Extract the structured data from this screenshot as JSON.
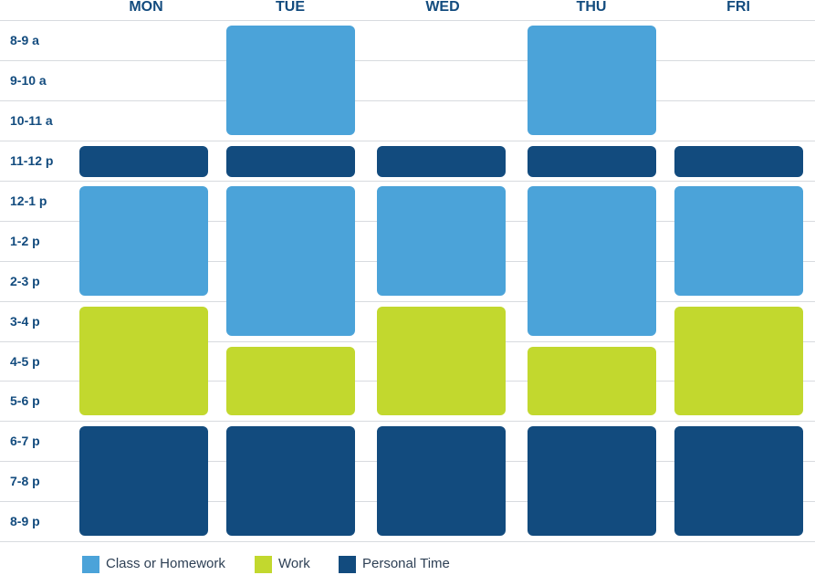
{
  "chart_data": {
    "type": "table",
    "title": "",
    "days": [
      "MON",
      "TUE",
      "WED",
      "THU",
      "FRI"
    ],
    "time_slots": [
      "8-9 a",
      "9-10 a",
      "10-11 a",
      "11-12 p",
      "12-1 p",
      "1-2 p",
      "2-3 p",
      "3-4 p",
      "4-5 p",
      "5-6 p",
      "6-7 p",
      "7-8 p",
      "8-9 p"
    ],
    "categories": [
      {
        "key": "class",
        "name": "Class or Homework",
        "color": "#4ba3d9"
      },
      {
        "key": "work",
        "name": "Work",
        "color": "#c2d82e"
      },
      {
        "key": "personal",
        "name": "Personal Time",
        "color": "#124b7e"
      }
    ],
    "blocks": [
      {
        "day": "TUE",
        "start_slot": "8-9 a",
        "end_slot": "10-11 a",
        "category": "class"
      },
      {
        "day": "THU",
        "start_slot": "8-9 a",
        "end_slot": "10-11 a",
        "category": "class"
      },
      {
        "day": "MON",
        "start_slot": "11-12 p",
        "end_slot": "11-12 p",
        "category": "personal"
      },
      {
        "day": "TUE",
        "start_slot": "11-12 p",
        "end_slot": "11-12 p",
        "category": "personal"
      },
      {
        "day": "WED",
        "start_slot": "11-12 p",
        "end_slot": "11-12 p",
        "category": "personal"
      },
      {
        "day": "THU",
        "start_slot": "11-12 p",
        "end_slot": "11-12 p",
        "category": "personal"
      },
      {
        "day": "FRI",
        "start_slot": "11-12 p",
        "end_slot": "11-12 p",
        "category": "personal"
      },
      {
        "day": "MON",
        "start_slot": "12-1 p",
        "end_slot": "2-3 p",
        "category": "class"
      },
      {
        "day": "TUE",
        "start_slot": "12-1 p",
        "end_slot": "3-4 p",
        "category": "class"
      },
      {
        "day": "WED",
        "start_slot": "12-1 p",
        "end_slot": "2-3 p",
        "category": "class"
      },
      {
        "day": "THU",
        "start_slot": "12-1 p",
        "end_slot": "3-4 p",
        "category": "class"
      },
      {
        "day": "FRI",
        "start_slot": "12-1 p",
        "end_slot": "2-3 p",
        "category": "class"
      },
      {
        "day": "MON",
        "start_slot": "3-4 p",
        "end_slot": "5-6 p",
        "category": "work"
      },
      {
        "day": "TUE",
        "start_slot": "4-5 p",
        "end_slot": "5-6 p",
        "category": "work"
      },
      {
        "day": "WED",
        "start_slot": "3-4 p",
        "end_slot": "5-6 p",
        "category": "work"
      },
      {
        "day": "THU",
        "start_slot": "4-5 p",
        "end_slot": "5-6 p",
        "category": "work"
      },
      {
        "day": "FRI",
        "start_slot": "3-4 p",
        "end_slot": "5-6 p",
        "category": "work"
      },
      {
        "day": "MON",
        "start_slot": "6-7 p",
        "end_slot": "8-9 p",
        "category": "personal"
      },
      {
        "day": "TUE",
        "start_slot": "6-7 p",
        "end_slot": "8-9 p",
        "category": "personal"
      },
      {
        "day": "WED",
        "start_slot": "6-7 p",
        "end_slot": "8-9 p",
        "category": "personal"
      },
      {
        "day": "THU",
        "start_slot": "6-7 p",
        "end_slot": "8-9 p",
        "category": "personal"
      },
      {
        "day": "FRI",
        "start_slot": "6-7 p",
        "end_slot": "8-9 p",
        "category": "personal"
      }
    ],
    "legend_position": "bottom"
  }
}
